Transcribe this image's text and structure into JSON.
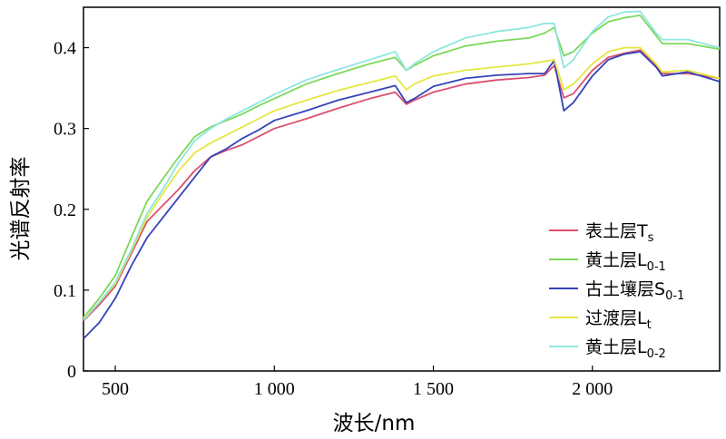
{
  "chart_data": {
    "type": "line",
    "xlabel": "波长/nm",
    "ylabel": "光谱反射率",
    "xlim": [
      400,
      2400
    ],
    "ylim": [
      0,
      0.45
    ],
    "x_ticks": [
      500,
      1000,
      1500,
      2000
    ],
    "x_tick_labels": [
      "500",
      "1 000",
      "1 500",
      "2 000"
    ],
    "y_ticks": [
      0,
      0.1,
      0.2,
      0.3,
      0.4
    ],
    "y_tick_labels": [
      "0",
      "0.1",
      "0.2",
      "0.3",
      "0.4"
    ],
    "grid": false,
    "legend_position": "bottom-right",
    "series": [
      {
        "name": "表土层T",
        "name_sub": "s",
        "color": "#d9506e",
        "x": [
          400,
          450,
          500,
          550,
          600,
          650,
          700,
          750,
          800,
          850,
          900,
          950,
          1000,
          1100,
          1200,
          1300,
          1380,
          1415,
          1440,
          1500,
          1600,
          1700,
          1800,
          1850,
          1880,
          1910,
          1940,
          2000,
          2050,
          2100,
          2150,
          2200,
          2220,
          2300,
          2400
        ],
        "y": [
          0.062,
          0.082,
          0.105,
          0.145,
          0.185,
          0.205,
          0.225,
          0.248,
          0.265,
          0.273,
          0.28,
          0.29,
          0.3,
          0.312,
          0.325,
          0.337,
          0.345,
          0.33,
          0.335,
          0.345,
          0.355,
          0.36,
          0.363,
          0.366,
          0.378,
          0.338,
          0.343,
          0.372,
          0.388,
          0.393,
          0.397,
          0.378,
          0.368,
          0.368,
          0.362
        ]
      },
      {
        "name": "黄土层L",
        "name_sub": "0-1",
        "color": "#7dd85a",
        "x": [
          400,
          450,
          500,
          550,
          600,
          650,
          700,
          750,
          800,
          850,
          900,
          950,
          1000,
          1100,
          1200,
          1300,
          1380,
          1415,
          1440,
          1500,
          1600,
          1700,
          1800,
          1850,
          1880,
          1910,
          1940,
          2000,
          2050,
          2100,
          2150,
          2200,
          2220,
          2300,
          2400
        ],
        "y": [
          0.066,
          0.09,
          0.118,
          0.165,
          0.21,
          0.238,
          0.265,
          0.29,
          0.302,
          0.31,
          0.318,
          0.328,
          0.337,
          0.355,
          0.368,
          0.38,
          0.388,
          0.372,
          0.378,
          0.39,
          0.402,
          0.408,
          0.412,
          0.418,
          0.425,
          0.39,
          0.395,
          0.418,
          0.432,
          0.437,
          0.44,
          0.415,
          0.405,
          0.405,
          0.398
        ]
      },
      {
        "name": "古土壤层S",
        "name_sub": "0-1",
        "color": "#3543b8",
        "x": [
          400,
          450,
          500,
          550,
          600,
          650,
          700,
          750,
          800,
          850,
          900,
          950,
          1000,
          1100,
          1200,
          1300,
          1380,
          1415,
          1440,
          1500,
          1600,
          1700,
          1800,
          1850,
          1880,
          1910,
          1940,
          2000,
          2050,
          2100,
          2150,
          2200,
          2220,
          2300,
          2400
        ],
        "y": [
          0.04,
          0.06,
          0.09,
          0.13,
          0.165,
          0.19,
          0.215,
          0.24,
          0.265,
          0.275,
          0.288,
          0.298,
          0.31,
          0.322,
          0.335,
          0.345,
          0.353,
          0.332,
          0.337,
          0.352,
          0.362,
          0.366,
          0.368,
          0.368,
          0.384,
          0.322,
          0.332,
          0.365,
          0.385,
          0.392,
          0.395,
          0.376,
          0.365,
          0.37,
          0.358
        ]
      },
      {
        "name": "过渡层L",
        "name_sub": "t",
        "color": "#e6e640",
        "x": [
          400,
          450,
          500,
          550,
          600,
          650,
          700,
          750,
          800,
          850,
          900,
          950,
          1000,
          1100,
          1200,
          1300,
          1380,
          1415,
          1440,
          1500,
          1600,
          1700,
          1800,
          1850,
          1880,
          1910,
          1940,
          2000,
          2050,
          2100,
          2150,
          2200,
          2220,
          2300,
          2400
        ],
        "y": [
          0.065,
          0.085,
          0.108,
          0.148,
          0.19,
          0.22,
          0.248,
          0.27,
          0.282,
          0.292,
          0.302,
          0.312,
          0.322,
          0.335,
          0.347,
          0.357,
          0.365,
          0.348,
          0.355,
          0.365,
          0.372,
          0.376,
          0.38,
          0.383,
          0.385,
          0.348,
          0.355,
          0.38,
          0.395,
          0.4,
          0.4,
          0.38,
          0.37,
          0.372,
          0.362
        ]
      },
      {
        "name": "黄土层L",
        "name_sub": "0-2",
        "color": "#8fe6e0",
        "x": [
          400,
          450,
          500,
          550,
          600,
          650,
          700,
          750,
          800,
          850,
          900,
          950,
          1000,
          1100,
          1200,
          1300,
          1380,
          1415,
          1440,
          1500,
          1600,
          1700,
          1800,
          1850,
          1880,
          1910,
          1940,
          2000,
          2050,
          2100,
          2150,
          2200,
          2220,
          2300,
          2400
        ],
        "y": [
          0.063,
          0.085,
          0.11,
          0.15,
          0.195,
          0.225,
          0.258,
          0.285,
          0.3,
          0.312,
          0.322,
          0.332,
          0.342,
          0.36,
          0.373,
          0.385,
          0.395,
          0.372,
          0.38,
          0.395,
          0.412,
          0.42,
          0.425,
          0.43,
          0.43,
          0.375,
          0.385,
          0.42,
          0.438,
          0.444,
          0.445,
          0.418,
          0.41,
          0.41,
          0.4
        ]
      }
    ]
  }
}
